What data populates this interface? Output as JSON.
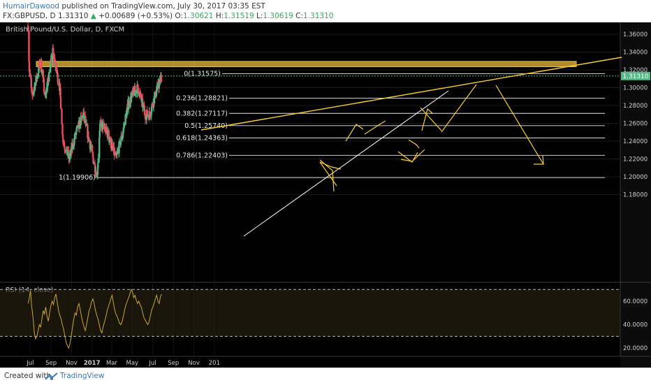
{
  "header": {
    "author": "HumairDawood",
    "published": "published on TradingView.com, July 30, 2017 03:35 EST",
    "symbol": "FX:GBPUSD, D",
    "last": "1.31310",
    "change": "+0.00689 (+0.53%)",
    "o_label": "O:",
    "o": "1.30621",
    "h_label": "H:",
    "h": "1.31519",
    "l_label": "L:",
    "l": "1.30619",
    "c_label": "C:",
    "c": "1.31310"
  },
  "chart_title": "British Pound/U.S. Dollar, D, FXCM",
  "price_badge": "1.31310",
  "footer": {
    "created": "Created with",
    "brand": "TradingView"
  },
  "colors": {
    "background": "#000000",
    "up": "#53b987",
    "down": "#eb4d5c",
    "drawing": "#ffcc33",
    "zone": "#f3c03c",
    "rsi": "#c8a833",
    "axis_text": "#d0d0d0"
  },
  "chart_data": [
    {
      "type": "candlestick",
      "title": "British Pound/U.S. Dollar, D, FXCM",
      "x_tick_labels": [
        "Jul",
        "Sep",
        "Nov",
        "2017",
        "Mar",
        "May",
        "Jul",
        "Sep",
        "Nov",
        "201"
      ],
      "y_tick_labels": [
        "1.36000",
        "1.34000",
        "1.32000",
        "1.30000",
        "1.28000",
        "1.26000",
        "1.24000",
        "1.22000",
        "1.20000",
        "1.18000"
      ],
      "ylim": [
        1.165,
        1.37
      ],
      "anchors": [
        {
          "date": "2016-06-24",
          "close": 1.37
        },
        {
          "date": "2016-06-28",
          "close": 1.32
        },
        {
          "date": "2016-07-06",
          "close": 1.29
        },
        {
          "date": "2016-08-01",
          "close": 1.33
        },
        {
          "date": "2016-08-15",
          "close": 1.29
        },
        {
          "date": "2016-09-06",
          "close": 1.34
        },
        {
          "date": "2016-09-27",
          "close": 1.3
        },
        {
          "date": "2016-10-07",
          "close": 1.24
        },
        {
          "date": "2016-10-25",
          "close": 1.22
        },
        {
          "date": "2016-11-15",
          "close": 1.25
        },
        {
          "date": "2016-12-06",
          "close": 1.27
        },
        {
          "date": "2016-12-30",
          "close": 1.23
        },
        {
          "date": "2017-01-16",
          "close": 1.2
        },
        {
          "date": "2017-01-26",
          "close": 1.26
        },
        {
          "date": "2017-02-15",
          "close": 1.25
        },
        {
          "date": "2017-03-14",
          "close": 1.22
        },
        {
          "date": "2017-04-03",
          "close": 1.25
        },
        {
          "date": "2017-04-18",
          "close": 1.28
        },
        {
          "date": "2017-05-05",
          "close": 1.295
        },
        {
          "date": "2017-05-18",
          "close": 1.3
        },
        {
          "date": "2017-06-09",
          "close": 1.27
        },
        {
          "date": "2017-06-22",
          "close": 1.27
        },
        {
          "date": "2017-07-07",
          "close": 1.29
        },
        {
          "date": "2017-07-28",
          "close": 1.3131
        }
      ],
      "fib_levels": [
        {
          "label": "0(1.31575)",
          "value": 1.31575
        },
        {
          "label": "0.236(1.28821)",
          "value": 1.28821
        },
        {
          "label": "0.382(1.27117)",
          "value": 1.27117
        },
        {
          "label": "0.5(1.25740)",
          "value": 1.2574
        },
        {
          "label": "0.618(1.24363)",
          "value": 1.24363
        },
        {
          "label": "0.786(1.22403)",
          "value": 1.22403
        },
        {
          "label": "1(1.19906)",
          "value": 1.19906
        }
      ],
      "resistance_zone": [
        1.3235,
        1.3295
      ],
      "current_price": 1.3131
    },
    {
      "type": "line",
      "title": "RSI (14, close)",
      "y_tick_labels": [
        "60.0000",
        "40.0000",
        "20.0000"
      ],
      "ylim": [
        13,
        73
      ],
      "bands": [
        70,
        30
      ],
      "series": [
        {
          "values": [
            58,
            62,
            69,
            55,
            46,
            33,
            28,
            30,
            35,
            40,
            38,
            45,
            52,
            49,
            55,
            47,
            43,
            50,
            56,
            60,
            57,
            63,
            66,
            59,
            52,
            48,
            45,
            40,
            36,
            30,
            25,
            22,
            20,
            24,
            30,
            38,
            45,
            50,
            48,
            55,
            58,
            53,
            47,
            42,
            38,
            35,
            40,
            46,
            52,
            55,
            60,
            62,
            58,
            52,
            48,
            45,
            40,
            35,
            33,
            38,
            42,
            46,
            51,
            55,
            58,
            62,
            65,
            59,
            53,
            49,
            47,
            44,
            41,
            40,
            43,
            48,
            53,
            57,
            60,
            63,
            66,
            70,
            68,
            63,
            65,
            61,
            58,
            60,
            57,
            55,
            50,
            46,
            44,
            42,
            40,
            42,
            47,
            52,
            55,
            58,
            62,
            65,
            60,
            58,
            64,
            66
          ]
        }
      ]
    }
  ]
}
